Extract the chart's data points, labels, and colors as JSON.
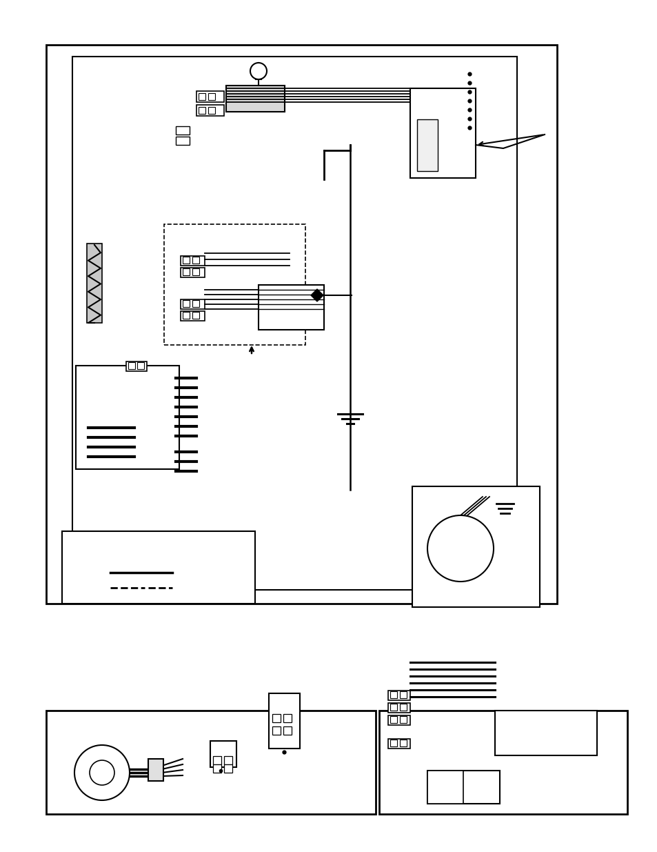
{
  "bg_color": "#ffffff",
  "line_color": "#000000",
  "gray_color": "#888888",
  "light_gray": "#cccccc"
}
